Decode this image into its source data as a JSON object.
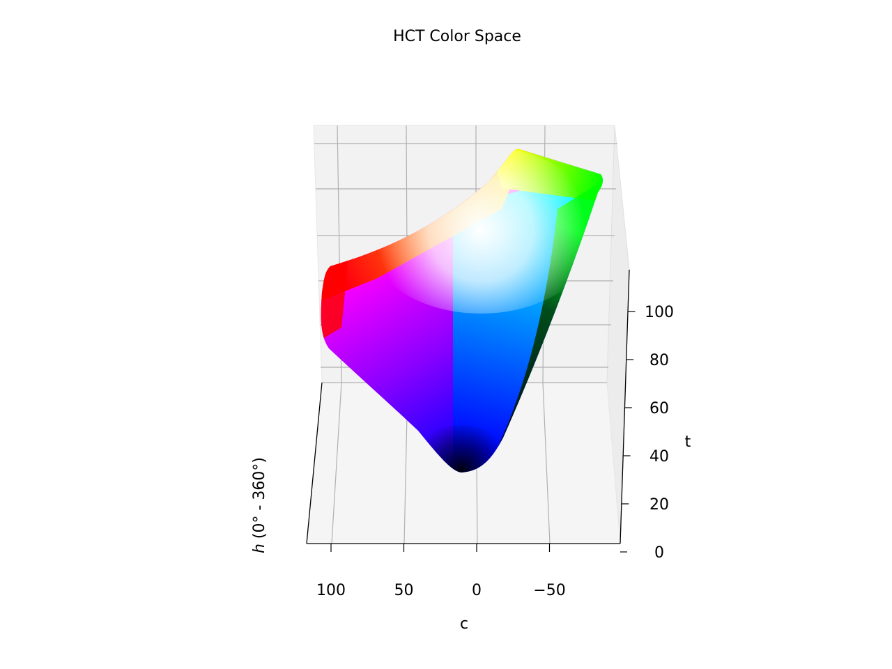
{
  "chart_data": {
    "type": "scatter",
    "projection": "3d",
    "title": "HCT Color Space",
    "xlabel": "c",
    "zlabel": "t",
    "ylabel_italic": "h",
    "ylabel_rest": " (0° - 360°)",
    "x_ticks": [
      {
        "value": 100,
        "label": "100"
      },
      {
        "value": 50,
        "label": "50"
      },
      {
        "value": 0,
        "label": "0"
      },
      {
        "value": -50,
        "label": "−50"
      }
    ],
    "z_ticks": [
      {
        "value": 0,
        "label": "0"
      },
      {
        "value": 20,
        "label": "20"
      },
      {
        "value": 40,
        "label": "40"
      },
      {
        "value": 60,
        "label": "60"
      },
      {
        "value": 80,
        "label": "80"
      },
      {
        "value": 100,
        "label": "100"
      }
    ],
    "xlim": [
      115,
      -100
    ],
    "zlim": [
      0,
      115
    ],
    "grid": true,
    "surface_colors": {
      "red": "#ff0000",
      "orange": "#ff9900",
      "yellow": "#ffff00",
      "green": "#00ff00",
      "cyan": "#00ffff",
      "sky": "#0099ff",
      "blue": "#0000ff",
      "magenta": "#ff00ff",
      "violet": "#8800ff",
      "white": "#ffffff",
      "black": "#000000"
    }
  }
}
